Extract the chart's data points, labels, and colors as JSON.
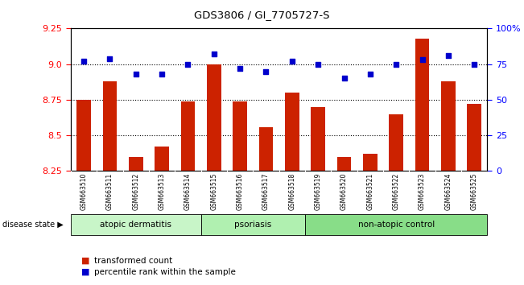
{
  "title": "GDS3806 / GI_7705727-S",
  "samples": [
    "GSM663510",
    "GSM663511",
    "GSM663512",
    "GSM663513",
    "GSM663514",
    "GSM663515",
    "GSM663516",
    "GSM663517",
    "GSM663518",
    "GSM663519",
    "GSM663520",
    "GSM663521",
    "GSM663522",
    "GSM663523",
    "GSM663524",
    "GSM663525"
  ],
  "transformed_count": [
    8.75,
    8.88,
    8.35,
    8.42,
    8.74,
    9.0,
    8.74,
    8.56,
    8.8,
    8.7,
    8.35,
    8.37,
    8.65,
    9.18,
    8.88,
    8.72
  ],
  "percentile_rank": [
    77,
    79,
    68,
    68,
    75,
    82,
    72,
    70,
    77,
    75,
    65,
    68,
    75,
    78,
    81,
    75
  ],
  "groups": [
    {
      "label": "atopic dermatitis",
      "start": 0,
      "end": 4,
      "color": "#c8f5c8"
    },
    {
      "label": "psoriasis",
      "start": 5,
      "end": 8,
      "color": "#b0f0b0"
    },
    {
      "label": "non-atopic control",
      "start": 9,
      "end": 15,
      "color": "#88dd88"
    }
  ],
  "ylim_left": [
    8.25,
    9.25
  ],
  "ylim_right": [
    0,
    100
  ],
  "yticks_left": [
    8.25,
    8.5,
    8.75,
    9.0,
    9.25
  ],
  "yticks_right": [
    0,
    25,
    50,
    75,
    100
  ],
  "bar_color": "#cc2200",
  "dot_color": "#0000cc",
  "plot_bg": "#ffffff",
  "tick_bg": "#cccccc",
  "legend_bar_label": "transformed count",
  "legend_dot_label": "percentile rank within the sample",
  "disease_state_label": "disease state"
}
